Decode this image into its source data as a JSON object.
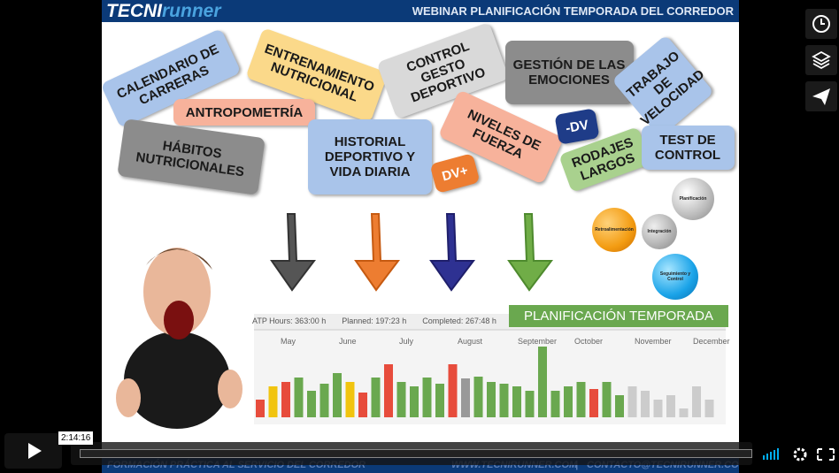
{
  "header": {
    "logo_bold": "TECNI",
    "logo_italic": "runner",
    "title": "WEBINAR PLANIFICACIÓN TEMPORADA DEL CORREDOR"
  },
  "tags": [
    "CALENDARIO DE CARRERAS",
    "ENTRENAMIENTO NUTRICIONAL",
    "CONTROL GESTO DEPORTIVO",
    "GESTIÓN DE LAS EMOCIONES",
    "TRABAJO DE VELOCIDAD",
    "ANTROPOMETRÍA",
    "HÁBITOS NUTRICIONALES",
    "HISTORIAL DEPORTIVO Y VIDA DIARIA",
    "NIVELES DE FUERZA",
    "-DV",
    "DV+",
    "RODAJES LARGOS",
    "TEST DE CONTROL"
  ],
  "spheres": [
    "Retroalimentación",
    "Planificación",
    "Integración",
    "Seguimiento y Control"
  ],
  "banner": "PLANIFICACIÓN TEMPORADA",
  "stats": [
    "ATP Hours: 363:00 h",
    "Planned: 197:23 h",
    "Completed: 267:48 h"
  ],
  "months": [
    "May",
    "June",
    "July",
    "August",
    "September",
    "October",
    "November",
    "December"
  ],
  "footer": {
    "left": "FORMACIÓN PRÁCTICA AL SERVICIO DEL CORREDOR",
    "site": "WWW.TECNIRUNNER.COM",
    "separator": "|",
    "contact": "CONTACTO@TECNIRUNNER.COM"
  },
  "player": {
    "time": "2:14:16"
  }
}
